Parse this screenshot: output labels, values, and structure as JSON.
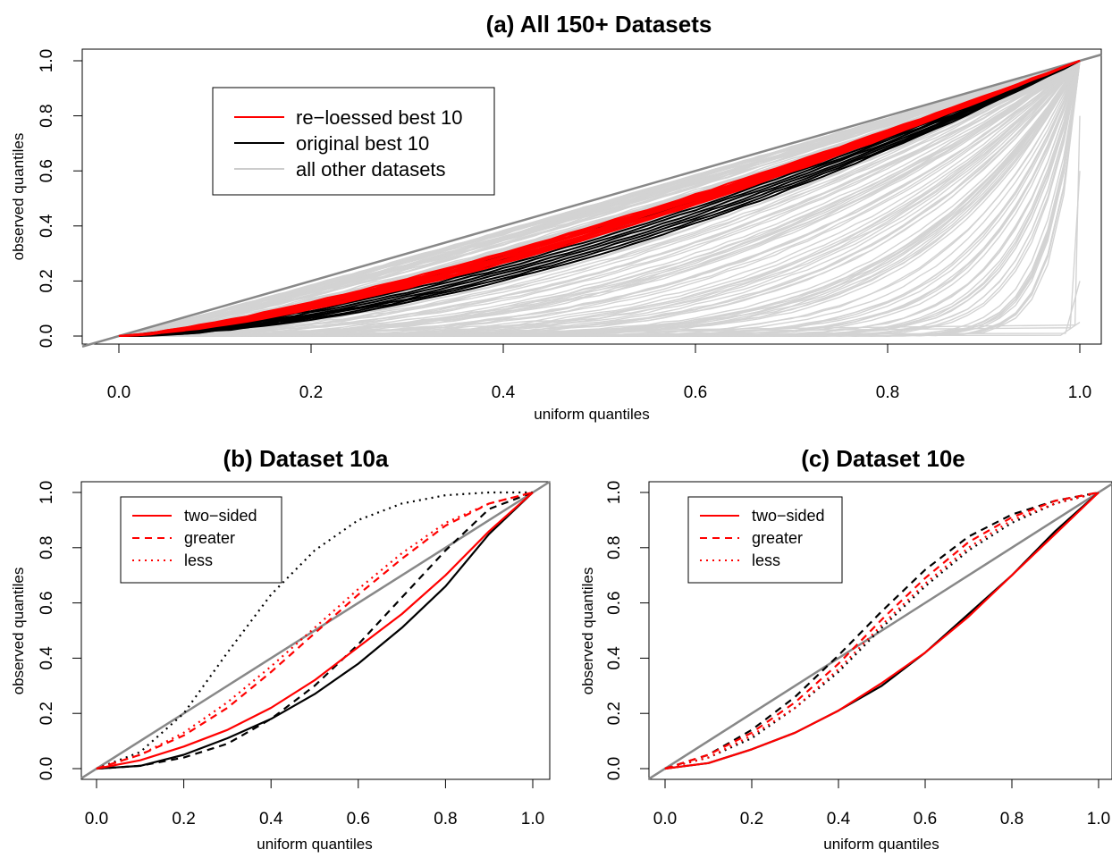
{
  "chart_data": [
    {
      "id": "a",
      "type": "line",
      "title": "(a) All 150+ Datasets",
      "xlabel": "uniform quantiles",
      "ylabel": "observed quantiles",
      "xlim": [
        0,
        1
      ],
      "ylim": [
        0,
        1
      ],
      "xticks": [
        "0.0",
        "0.2",
        "0.4",
        "0.6",
        "0.8",
        "1.0"
      ],
      "yticks": [
        "0.0",
        "0.2",
        "0.4",
        "0.6",
        "0.8",
        "1.0"
      ],
      "grid": false,
      "legend_position": "top-left",
      "reference_line": {
        "x": [
          0,
          1
        ],
        "y": [
          0,
          1
        ],
        "color": "#888888"
      },
      "legend": [
        {
          "label": "re−loessed best 10",
          "color": "#ff0000",
          "style": "solid"
        },
        {
          "label": "original best 10",
          "color": "#000000",
          "style": "solid"
        },
        {
          "label": "all other datasets",
          "color": "#cccccc",
          "style": "solid"
        }
      ],
      "groups": [
        {
          "group": "all other datasets",
          "color": "#d3d3d3",
          "series_count": 150,
          "curve_exponent_range": [
            1.05,
            40
          ]
        },
        {
          "group": "original best 10",
          "color": "#000000",
          "series_count": 10,
          "curve_exponent_range": [
            1.35,
            1.75
          ]
        },
        {
          "group": "re−loessed best 10",
          "color": "#ff0000",
          "series_count": 10,
          "curve_exponent_range": [
            1.3,
            1.45
          ]
        }
      ],
      "sample_points": {
        "x": [
          0,
          0.2,
          0.4,
          0.6,
          0.8,
          1.0
        ],
        "original_best_10_typical": [
          0,
          0.04,
          0.18,
          0.36,
          0.6,
          1.0
        ],
        "reloessed_best_10_typical": [
          0,
          0.07,
          0.24,
          0.44,
          0.7,
          1.0
        ]
      }
    },
    {
      "id": "b",
      "type": "line",
      "title": "(b) Dataset 10a",
      "xlabel": "uniform quantiles",
      "ylabel": "observed quantiles",
      "xlim": [
        0,
        1
      ],
      "ylim": [
        0,
        1
      ],
      "xticks": [
        "0.0",
        "0.2",
        "0.4",
        "0.6",
        "0.8",
        "1.0"
      ],
      "yticks": [
        "0.0",
        "0.2",
        "0.4",
        "0.6",
        "0.8",
        "1.0"
      ],
      "grid": false,
      "legend_position": "top-left",
      "reference_line": {
        "x": [
          0,
          1
        ],
        "y": [
          0,
          1
        ],
        "color": "#888888"
      },
      "legend": [
        {
          "label": "two−sided",
          "color": "#ff0000",
          "style": "solid"
        },
        {
          "label": "greater",
          "color": "#ff0000",
          "style": "dashed"
        },
        {
          "label": "less",
          "color": "#ff0000",
          "style": "dotted"
        }
      ],
      "x": [
        0,
        0.1,
        0.2,
        0.3,
        0.4,
        0.5,
        0.6,
        0.7,
        0.8,
        0.9,
        1.0
      ],
      "series": [
        {
          "name": "two−sided",
          "color": "#000000",
          "style": "solid",
          "values": [
            0,
            0.01,
            0.05,
            0.11,
            0.18,
            0.27,
            0.38,
            0.51,
            0.66,
            0.85,
            1.0
          ]
        },
        {
          "name": "greater",
          "color": "#000000",
          "style": "dashed",
          "values": [
            0,
            0.01,
            0.04,
            0.09,
            0.18,
            0.3,
            0.45,
            0.62,
            0.79,
            0.94,
            1.0
          ]
        },
        {
          "name": "less",
          "color": "#000000",
          "style": "dotted",
          "values": [
            0,
            0.06,
            0.2,
            0.42,
            0.63,
            0.79,
            0.9,
            0.96,
            0.99,
            1.0,
            1.0
          ]
        },
        {
          "name": "two−sided",
          "color": "#ff0000",
          "style": "solid",
          "values": [
            0,
            0.03,
            0.08,
            0.14,
            0.22,
            0.32,
            0.44,
            0.56,
            0.7,
            0.86,
            1.0
          ]
        },
        {
          "name": "greater",
          "color": "#ff0000",
          "style": "dashed",
          "values": [
            0,
            0.05,
            0.12,
            0.22,
            0.35,
            0.49,
            0.63,
            0.76,
            0.88,
            0.96,
            1.0
          ]
        },
        {
          "name": "less",
          "color": "#ff0000",
          "style": "dotted",
          "values": [
            0,
            0.05,
            0.13,
            0.24,
            0.37,
            0.51,
            0.65,
            0.78,
            0.89,
            0.96,
            1.0
          ]
        }
      ]
    },
    {
      "id": "c",
      "type": "line",
      "title": "(c) Dataset 10e",
      "xlabel": "uniform quantiles",
      "ylabel": "observed quantiles",
      "xlim": [
        0,
        1
      ],
      "ylim": [
        0,
        1
      ],
      "xticks": [
        "0.0",
        "0.2",
        "0.4",
        "0.6",
        "0.8",
        "1.0"
      ],
      "yticks": [
        "0.0",
        "0.2",
        "0.4",
        "0.6",
        "0.8",
        "1.0"
      ],
      "grid": false,
      "legend_position": "top-left",
      "reference_line": {
        "x": [
          0,
          1
        ],
        "y": [
          0,
          1
        ],
        "color": "#888888"
      },
      "legend": [
        {
          "label": "two−sided",
          "color": "#ff0000",
          "style": "solid"
        },
        {
          "label": "greater",
          "color": "#ff0000",
          "style": "dashed"
        },
        {
          "label": "less",
          "color": "#ff0000",
          "style": "dotted"
        }
      ],
      "x": [
        0,
        0.1,
        0.2,
        0.3,
        0.4,
        0.5,
        0.6,
        0.7,
        0.8,
        0.9,
        1.0
      ],
      "series": [
        {
          "name": "two−sided",
          "color": "#000000",
          "style": "solid",
          "values": [
            0,
            0.02,
            0.07,
            0.13,
            0.21,
            0.3,
            0.42,
            0.56,
            0.7,
            0.86,
            1.0
          ]
        },
        {
          "name": "greater",
          "color": "#000000",
          "style": "dashed",
          "values": [
            0,
            0.05,
            0.14,
            0.26,
            0.41,
            0.57,
            0.72,
            0.84,
            0.92,
            0.97,
            1.0
          ]
        },
        {
          "name": "less",
          "color": "#000000",
          "style": "dotted",
          "values": [
            0,
            0.04,
            0.11,
            0.22,
            0.35,
            0.51,
            0.66,
            0.79,
            0.89,
            0.96,
            1.0
          ]
        },
        {
          "name": "two−sided",
          "color": "#ff0000",
          "style": "solid",
          "values": [
            0,
            0.02,
            0.07,
            0.13,
            0.21,
            0.31,
            0.42,
            0.55,
            0.7,
            0.85,
            1.0
          ]
        },
        {
          "name": "greater",
          "color": "#ff0000",
          "style": "dashed",
          "values": [
            0,
            0.05,
            0.13,
            0.24,
            0.38,
            0.54,
            0.69,
            0.82,
            0.91,
            0.97,
            1.0
          ]
        },
        {
          "name": "less",
          "color": "#ff0000",
          "style": "dotted",
          "values": [
            0,
            0.04,
            0.12,
            0.22,
            0.36,
            0.52,
            0.67,
            0.8,
            0.9,
            0.96,
            1.0
          ]
        }
      ]
    }
  ]
}
